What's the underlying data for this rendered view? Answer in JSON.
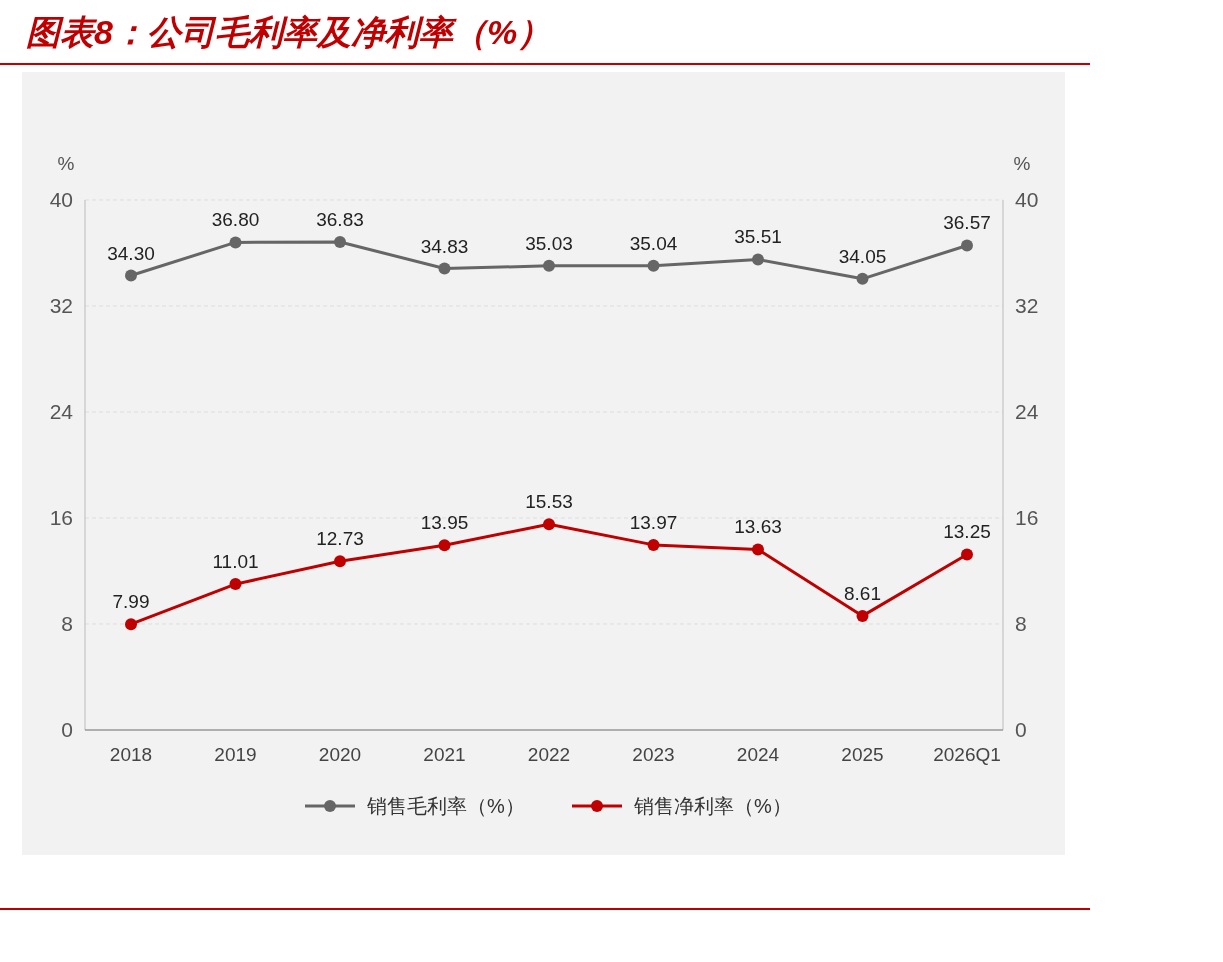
{
  "chart_data": {
    "type": "line",
    "title": "图表8：公司毛利率及净利率（%）",
    "ylabel": "%",
    "y2label": "%",
    "categories": [
      "2018",
      "2019",
      "2020",
      "2021",
      "2022",
      "2023",
      "2024",
      "2025",
      "2026Q1"
    ],
    "series": [
      {
        "name": "销售毛利率（%）",
        "color": "#666666",
        "values": [
          34.3,
          36.8,
          36.83,
          34.83,
          35.03,
          35.04,
          35.51,
          34.05,
          36.57
        ],
        "value_labels": [
          "34.30",
          "36.80",
          "36.83",
          "34.83",
          "35.03",
          "35.04",
          "35.51",
          "34.05",
          "36.57"
        ]
      },
      {
        "name": "销售净利率（%）",
        "color": "#c00000",
        "values": [
          7.99,
          11.01,
          12.73,
          13.95,
          15.53,
          13.97,
          13.63,
          8.61,
          13.25
        ],
        "value_labels": [
          "7.99",
          "11.01",
          "12.73",
          "13.95",
          "15.53",
          "13.97",
          "13.63",
          "8.61",
          "13.25"
        ]
      }
    ],
    "ylim": [
      0,
      40
    ],
    "yticks": [
      0,
      8,
      16,
      24,
      32,
      40
    ],
    "y2lim": [
      0,
      40
    ],
    "y2ticks": [
      0,
      8,
      16,
      24,
      32,
      40
    ],
    "grid": "y",
    "legend": "bottom",
    "marker": "circle",
    "line_style": "solid"
  }
}
